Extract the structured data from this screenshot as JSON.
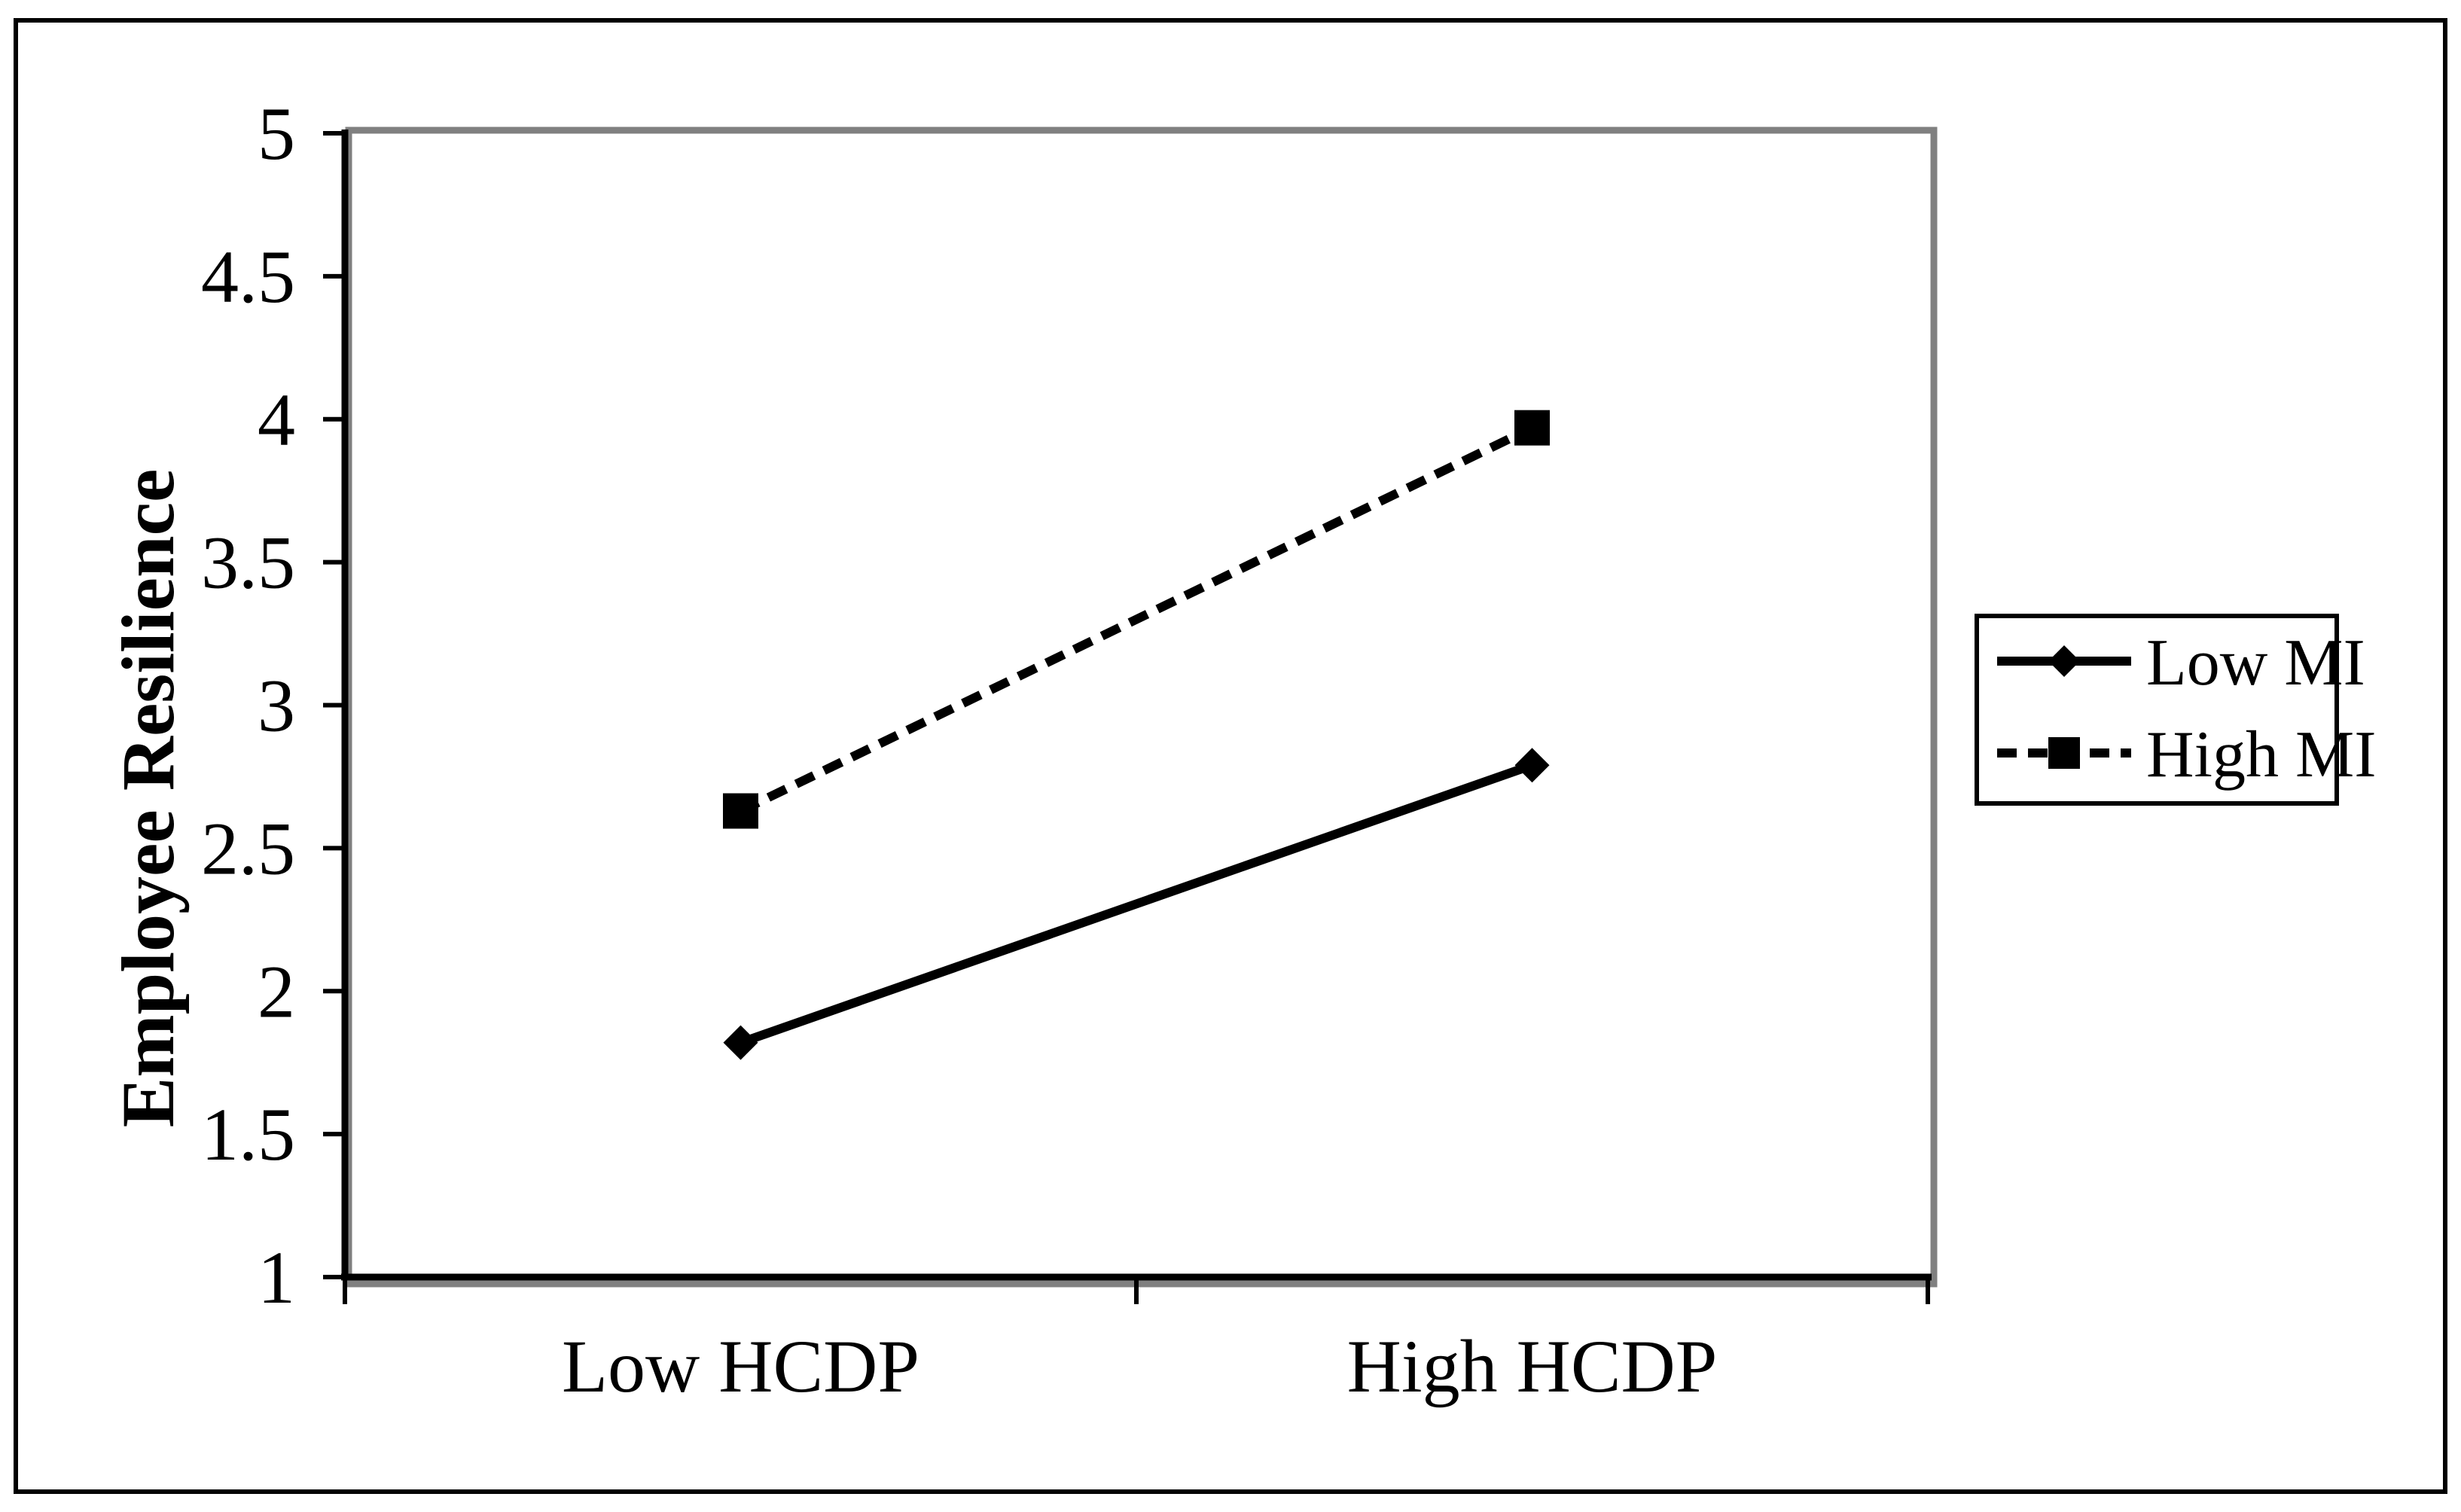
{
  "figure": {
    "background": "#ffffff",
    "border_color": "#000000"
  },
  "chart_data": {
    "type": "line",
    "title": "",
    "xlabel": "",
    "ylabel": "Employee Resilience",
    "categories": [
      "Low HCDP",
      "High HCDP"
    ],
    "series": [
      {
        "name": "Low MI",
        "values": [
          1.82,
          2.79
        ],
        "line_style": "solid",
        "marker": "diamond",
        "color": "#000000"
      },
      {
        "name": "High MI",
        "values": [
          2.63,
          3.97
        ],
        "line_style": "dashed",
        "marker": "square",
        "color": "#000000"
      }
    ],
    "ylim": [
      1,
      5
    ],
    "ytick_step": 0.5,
    "yticks": [
      1,
      1.5,
      2,
      2.5,
      3,
      3.5,
      4,
      4.5,
      5
    ],
    "grid": false,
    "legend_position": "right",
    "axis_color": "#000000",
    "axis_shadow_color": "#808080"
  }
}
